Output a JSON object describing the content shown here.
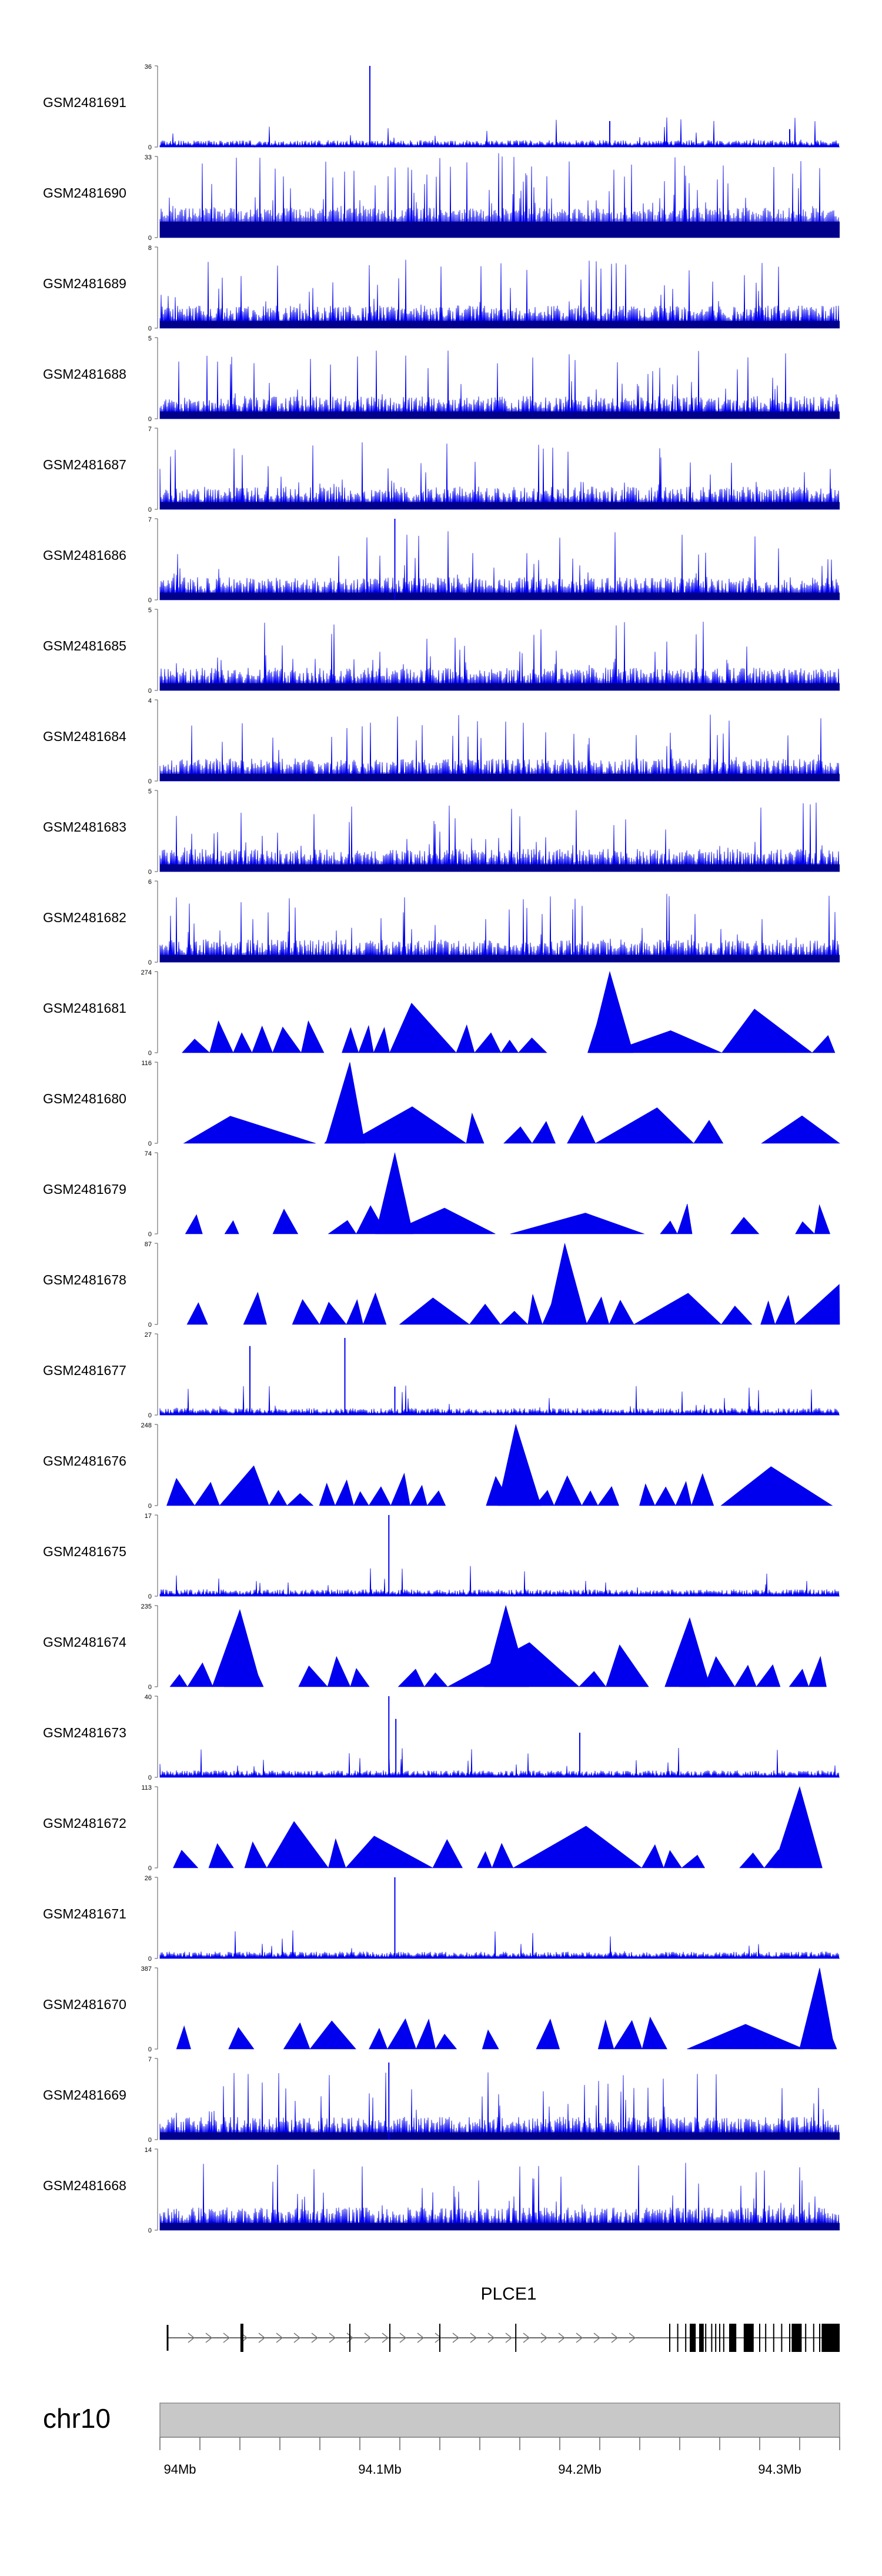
{
  "chart_data": {
    "type": "area",
    "title": "",
    "xlabel": "",
    "x_range_mb": [
      93.99,
      94.33
    ],
    "color": "#0000ee",
    "tracks": [
      {
        "name": "GSM2481691",
        "ymax": 36,
        "style": "signal",
        "seed": 11,
        "peaks": [
          [
            94.095,
            1.0
          ],
          [
            94.215,
            0.32
          ],
          [
            94.305,
            0.22
          ]
        ]
      },
      {
        "name": "GSM2481690",
        "ymax": 33,
        "style": "spiky",
        "seed": 12,
        "peaks": []
      },
      {
        "name": "GSM2481689",
        "ymax": 8,
        "style": "dense",
        "seed": 13,
        "peaks": []
      },
      {
        "name": "GSM2481688",
        "ymax": 5,
        "style": "dense",
        "seed": 14,
        "peaks": []
      },
      {
        "name": "GSM2481687",
        "ymax": 7,
        "style": "dense",
        "seed": 15,
        "peaks": []
      },
      {
        "name": "GSM2481686",
        "ymax": 7,
        "style": "dense",
        "seed": 16,
        "peaks": [
          [
            94.1075,
            1.0
          ]
        ]
      },
      {
        "name": "GSM2481685",
        "ymax": 5,
        "style": "dense",
        "seed": 17,
        "peaks": []
      },
      {
        "name": "GSM2481684",
        "ymax": 4,
        "style": "dense",
        "seed": 18,
        "peaks": []
      },
      {
        "name": "GSM2481683",
        "ymax": 5,
        "style": "dense",
        "seed": 19,
        "peaks": []
      },
      {
        "name": "GSM2481682",
        "ymax": 6,
        "style": "dense",
        "seed": 20,
        "peaks": []
      },
      {
        "name": "GSM2481681",
        "ymax": 274,
        "style": "triangles",
        "seed": 21,
        "peaks": [
          [
            94.215,
            1.0
          ]
        ]
      },
      {
        "name": "GSM2481680",
        "ymax": 116,
        "style": "triangles",
        "seed": 22,
        "peaks": [
          [
            94.085,
            1.0
          ]
        ]
      },
      {
        "name": "GSM2481679",
        "ymax": 74,
        "style": "triangles",
        "seed": 23,
        "peaks": [
          [
            94.1075,
            1.0
          ]
        ]
      },
      {
        "name": "GSM2481678",
        "ymax": 87,
        "style": "triangles",
        "seed": 24,
        "peaks": [
          [
            94.1925,
            1.0
          ]
        ]
      },
      {
        "name": "GSM2481677",
        "ymax": 27,
        "style": "signal",
        "seed": 25,
        "peaks": [
          [
            94.035,
            0.85
          ],
          [
            94.0825,
            0.95
          ],
          [
            94.1075,
            0.35
          ]
        ]
      },
      {
        "name": "GSM2481676",
        "ymax": 248,
        "style": "triangles",
        "seed": 26,
        "peaks": [
          [
            94.168,
            1.0
          ]
        ]
      },
      {
        "name": "GSM2481675",
        "ymax": 17,
        "style": "signal",
        "seed": 27,
        "peaks": [
          [
            94.1045,
            1.0
          ]
        ]
      },
      {
        "name": "GSM2481674",
        "ymax": 235,
        "style": "triangles",
        "seed": 28,
        "peaks": [
          [
            94.03,
            0.95
          ],
          [
            94.163,
            1.0
          ],
          [
            94.255,
            0.85
          ]
        ]
      },
      {
        "name": "GSM2481673",
        "ymax": 40,
        "style": "signal",
        "seed": 29,
        "peaks": [
          [
            94.1045,
            1.0
          ],
          [
            94.108,
            0.72
          ],
          [
            94.2,
            0.55
          ]
        ]
      },
      {
        "name": "GSM2481672",
        "ymax": 113,
        "style": "triangles",
        "seed": 30,
        "peaks": [
          [
            94.31,
            1.0
          ]
        ]
      },
      {
        "name": "GSM2481671",
        "ymax": 26,
        "style": "signal",
        "seed": 31,
        "peaks": [
          [
            94.1075,
            1.0
          ]
        ]
      },
      {
        "name": "GSM2481670",
        "ymax": 387,
        "style": "triangles",
        "seed": 32,
        "peaks": [
          [
            94.32,
            1.0
          ]
        ]
      },
      {
        "name": "GSM2481669",
        "ymax": 7,
        "style": "dense",
        "seed": 33,
        "peaks": [
          [
            94.1045,
            0.95
          ]
        ]
      },
      {
        "name": "GSM2481668",
        "ymax": 14,
        "style": "dense",
        "seed": 34,
        "peaks": []
      }
    ],
    "gene": {
      "name": "PLCE1",
      "strand": "+",
      "start_mb": 94.0,
      "end_mb": 94.33,
      "exons_mb": [
        94.031,
        94.085,
        94.105,
        94.13,
        94.168,
        94.245,
        94.249,
        94.253,
        94.256,
        94.26,
        94.263,
        94.266,
        94.268,
        94.27,
        94.272,
        94.275,
        94.278,
        94.283,
        94.29,
        94.293,
        94.297,
        94.301,
        94.305,
        94.309,
        94.313,
        94.317,
        94.32
      ],
      "thick_exons_mb": [
        [
          94.255,
          94.258
        ],
        [
          94.26,
          94.262
        ],
        [
          94.275,
          94.278
        ],
        [
          94.282,
          94.287
        ],
        [
          94.306,
          94.311
        ],
        [
          94.321,
          94.33
        ]
      ]
    },
    "ideogram": {
      "chromosome": "chr10"
    },
    "x_ticks": [
      {
        "mb": 94.0,
        "label": "94Mb"
      },
      {
        "mb": 94.1,
        "label": "94.1Mb"
      },
      {
        "mb": 94.2,
        "label": "94.2Mb"
      },
      {
        "mb": 94.3,
        "label": "94.3Mb"
      }
    ]
  }
}
